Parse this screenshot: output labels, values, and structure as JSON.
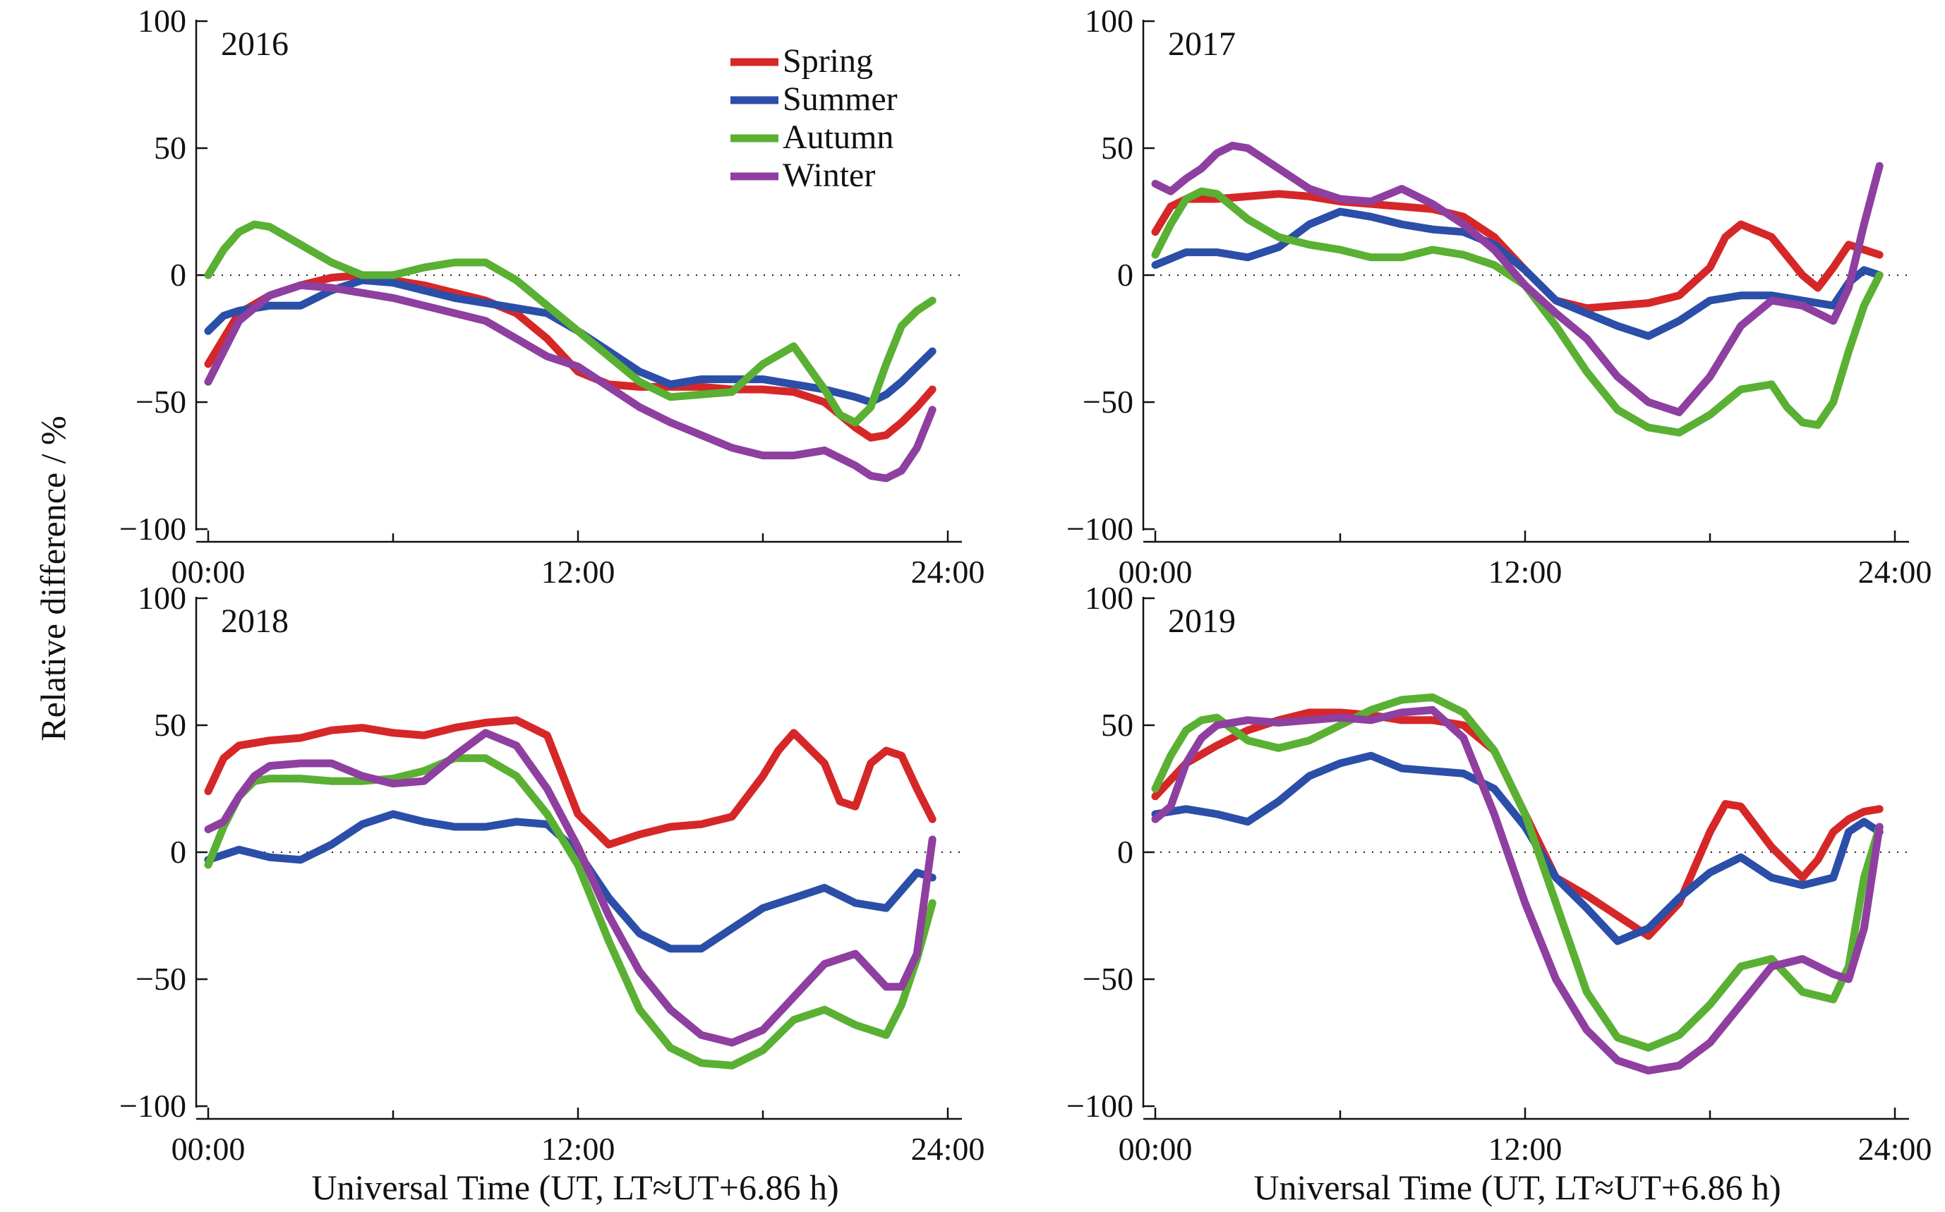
{
  "figure": {
    "ylabel": "Relative difference / %",
    "xlabel": "Universal Time (UT, LT≈UT+6.86 h)"
  },
  "chart_data": [
    {
      "type": "line",
      "title": "2016",
      "xlabel": "Universal Time (UT, LT≈UT+6.86 h)",
      "ylabel": "Relative difference / %",
      "xlim": [
        0,
        24
      ],
      "ylim": [
        -100,
        100
      ],
      "xticks": [
        "00:00",
        "12:00",
        "24:00"
      ],
      "yticks": [
        -100,
        -50,
        0,
        50,
        100
      ],
      "legend": "top-center",
      "series": [
        {
          "name": "Spring",
          "color": "#d62728",
          "x": [
            0,
            0.5,
            1,
            2,
            3,
            4,
            5,
            6,
            7,
            8,
            9,
            10,
            11,
            12,
            13,
            14,
            15,
            16,
            17,
            18,
            19,
            20,
            20.5,
            21,
            21.5,
            22,
            22.5,
            23,
            23.5
          ],
          "y": [
            -35,
            -25,
            -15,
            -8,
            -4,
            -1,
            0,
            -2,
            -4,
            -7,
            -10,
            -15,
            -25,
            -38,
            -43,
            -44,
            -44,
            -44,
            -45,
            -45,
            -46,
            -50,
            -55,
            -60,
            -64,
            -63,
            -58,
            -52,
            -45
          ]
        },
        {
          "name": "Summer",
          "color": "#2b4ea8",
          "x": [
            0,
            0.5,
            1,
            2,
            3,
            4,
            5,
            6,
            7,
            8,
            9,
            10,
            11,
            12,
            13,
            14,
            15,
            16,
            17,
            18,
            19,
            20,
            21,
            21.5,
            22,
            22.5,
            23,
            23.5
          ],
          "y": [
            -22,
            -16,
            -14,
            -12,
            -12,
            -6,
            -2,
            -3,
            -6,
            -9,
            -11,
            -13,
            -15,
            -22,
            -30,
            -38,
            -43,
            -41,
            -41,
            -41,
            -43,
            -45,
            -48,
            -50,
            -47,
            -42,
            -36,
            -30
          ]
        },
        {
          "name": "Autumn",
          "color": "#5ab033",
          "x": [
            0,
            0.5,
            1,
            1.5,
            2,
            3,
            4,
            5,
            6,
            7,
            8,
            9,
            10,
            11,
            12,
            13,
            14,
            15,
            16,
            17,
            18,
            19,
            20,
            20.5,
            21,
            21.5,
            22,
            22.5,
            23,
            23.5
          ],
          "y": [
            0,
            10,
            17,
            20,
            19,
            12,
            5,
            0,
            0,
            3,
            5,
            5,
            -2,
            -12,
            -22,
            -32,
            -42,
            -48,
            -47,
            -46,
            -35,
            -28,
            -45,
            -55,
            -58,
            -52,
            -35,
            -20,
            -14,
            -10
          ]
        },
        {
          "name": "Winter",
          "color": "#8e3fa0",
          "x": [
            0,
            0.5,
            1,
            2,
            3,
            4,
            5,
            6,
            7,
            8,
            9,
            10,
            11,
            12,
            13,
            14,
            15,
            16,
            17,
            18,
            19,
            20,
            20.5,
            21,
            21.5,
            22,
            22.5,
            23,
            23.5
          ],
          "y": [
            -42,
            -30,
            -18,
            -8,
            -4,
            -5,
            -7,
            -9,
            -12,
            -15,
            -18,
            -25,
            -32,
            -36,
            -44,
            -52,
            -58,
            -63,
            -68,
            -71,
            -71,
            -69,
            -72,
            -75,
            -79,
            -80,
            -77,
            -68,
            -53
          ]
        }
      ]
    },
    {
      "type": "line",
      "title": "2017",
      "xlabel": "Universal Time (UT, LT≈UT+6.86 h)",
      "ylabel": "",
      "xlim": [
        0,
        24
      ],
      "ylim": [
        -100,
        100
      ],
      "xticks": [
        "00:00",
        "12:00",
        "24:00"
      ],
      "yticks": [
        -100,
        -50,
        0,
        50,
        100
      ],
      "series": [
        {
          "name": "Spring",
          "color": "#d62728",
          "x": [
            0,
            0.5,
            1,
            2,
            3,
            4,
            5,
            6,
            7,
            8,
            9,
            10,
            11,
            12,
            13,
            14,
            15,
            16,
            17,
            18,
            18.5,
            19,
            20,
            21,
            21.5,
            22,
            22.5,
            23,
            23.5
          ],
          "y": [
            17,
            27,
            30,
            30,
            31,
            32,
            31,
            29,
            28,
            27,
            26,
            23,
            15,
            2,
            -10,
            -13,
            -12,
            -11,
            -8,
            3,
            15,
            20,
            15,
            0,
            -5,
            3,
            12,
            10,
            8
          ]
        },
        {
          "name": "Summer",
          "color": "#2b4ea8",
          "x": [
            0,
            1,
            2,
            3,
            4,
            5,
            6,
            7,
            8,
            9,
            10,
            11,
            12,
            13,
            14,
            15,
            16,
            17,
            18,
            19,
            20,
            21,
            22,
            22.5,
            23,
            23.5
          ],
          "y": [
            4,
            9,
            9,
            7,
            11,
            20,
            25,
            23,
            20,
            18,
            17,
            12,
            2,
            -10,
            -15,
            -20,
            -24,
            -18,
            -10,
            -8,
            -8,
            -10,
            -12,
            -3,
            2,
            0
          ]
        },
        {
          "name": "Autumn",
          "color": "#5ab033",
          "x": [
            0,
            0.5,
            1,
            1.5,
            2,
            3,
            4,
            5,
            6,
            7,
            8,
            9,
            10,
            11,
            12,
            13,
            14,
            15,
            16,
            17,
            18,
            19,
            20,
            20.5,
            21,
            21.5,
            22,
            22.5,
            23,
            23.5
          ],
          "y": [
            8,
            20,
            30,
            33,
            32,
            22,
            15,
            12,
            10,
            7,
            7,
            10,
            8,
            4,
            -4,
            -20,
            -38,
            -53,
            -60,
            -62,
            -55,
            -45,
            -43,
            -52,
            -58,
            -59,
            -50,
            -30,
            -12,
            0
          ]
        },
        {
          "name": "Winter",
          "color": "#8e3fa0",
          "x": [
            0,
            0.5,
            1,
            1.5,
            2,
            2.5,
            3,
            4,
            5,
            6,
            7,
            8,
            9,
            10,
            11,
            12,
            13,
            14,
            15,
            16,
            17,
            18,
            19,
            20,
            21,
            21.5,
            22,
            22.5,
            23,
            23.5
          ],
          "y": [
            36,
            33,
            38,
            42,
            48,
            51,
            50,
            42,
            34,
            30,
            29,
            34,
            28,
            20,
            10,
            -4,
            -15,
            -25,
            -40,
            -50,
            -54,
            -40,
            -20,
            -10,
            -12,
            -15,
            -18,
            -5,
            20,
            43
          ]
        }
      ]
    },
    {
      "type": "line",
      "title": "2018",
      "xlabel": "Universal Time (UT, LT≈UT+6.86 h)",
      "ylabel": "Relative difference / %",
      "xlim": [
        0,
        24
      ],
      "ylim": [
        -100,
        100
      ],
      "xticks": [
        "00:00",
        "12:00",
        "24:00"
      ],
      "yticks": [
        -100,
        -50,
        0,
        50,
        100
      ],
      "series": [
        {
          "name": "Spring",
          "color": "#d62728",
          "x": [
            0,
            0.5,
            1,
            2,
            3,
            4,
            5,
            6,
            7,
            8,
            9,
            10,
            11,
            12,
            13,
            14,
            15,
            16,
            17,
            18,
            18.5,
            19,
            20,
            20.5,
            21,
            21.5,
            22,
            22.5,
            23,
            23.5
          ],
          "y": [
            24,
            37,
            42,
            44,
            45,
            48,
            49,
            47,
            46,
            49,
            51,
            52,
            46,
            15,
            3,
            7,
            10,
            11,
            14,
            30,
            40,
            47,
            35,
            20,
            18,
            35,
            40,
            38,
            25,
            13
          ]
        },
        {
          "name": "Summer",
          "color": "#2b4ea8",
          "x": [
            0,
            1,
            2,
            3,
            4,
            5,
            6,
            7,
            8,
            9,
            10,
            11,
            12,
            13,
            14,
            15,
            16,
            17,
            18,
            19,
            20,
            21,
            22,
            22.5,
            23,
            23.5
          ],
          "y": [
            -3,
            1,
            -2,
            -3,
            3,
            11,
            15,
            12,
            10,
            10,
            12,
            11,
            0,
            -18,
            -32,
            -38,
            -38,
            -30,
            -22,
            -18,
            -14,
            -20,
            -22,
            -15,
            -8,
            -10
          ]
        },
        {
          "name": "Autumn",
          "color": "#5ab033",
          "x": [
            0,
            0.5,
            1,
            1.5,
            2,
            3,
            4,
            5,
            6,
            7,
            8,
            9,
            10,
            11,
            12,
            13,
            14,
            15,
            16,
            17,
            18,
            19,
            20,
            21,
            22,
            22.5,
            23,
            23.5
          ],
          "y": [
            -5,
            10,
            22,
            28,
            29,
            29,
            28,
            28,
            29,
            32,
            37,
            37,
            30,
            15,
            -5,
            -35,
            -62,
            -77,
            -83,
            -84,
            -78,
            -66,
            -62,
            -68,
            -72,
            -60,
            -42,
            -20
          ]
        },
        {
          "name": "Winter",
          "color": "#8e3fa0",
          "x": [
            0,
            0.5,
            1,
            1.5,
            2,
            3,
            4,
            5,
            6,
            7,
            8,
            9,
            10,
            11,
            12,
            13,
            14,
            15,
            16,
            17,
            18,
            19,
            20,
            21,
            22,
            22.5,
            23,
            23.5
          ],
          "y": [
            9,
            12,
            22,
            30,
            34,
            35,
            35,
            30,
            27,
            28,
            38,
            47,
            42,
            25,
            2,
            -25,
            -47,
            -62,
            -72,
            -75,
            -70,
            -57,
            -44,
            -40,
            -53,
            -53,
            -40,
            5
          ]
        }
      ]
    },
    {
      "type": "line",
      "title": "2019",
      "xlabel": "Universal Time (UT, LT≈UT+6.86 h)",
      "ylabel": "",
      "xlim": [
        0,
        24
      ],
      "ylim": [
        -100,
        100
      ],
      "xticks": [
        "00:00",
        "12:00",
        "24:00"
      ],
      "yticks": [
        -100,
        -50,
        0,
        50,
        100
      ],
      "series": [
        {
          "name": "Spring",
          "color": "#d62728",
          "x": [
            0,
            1,
            2,
            3,
            4,
            5,
            6,
            7,
            8,
            9,
            10,
            11,
            12,
            13,
            14,
            15,
            16,
            17,
            18,
            18.5,
            19,
            20,
            21,
            21.5,
            22,
            22.5,
            23,
            23.5
          ],
          "y": [
            22,
            35,
            42,
            48,
            52,
            55,
            55,
            54,
            52,
            52,
            50,
            40,
            15,
            -10,
            -17,
            -25,
            -33,
            -20,
            8,
            19,
            18,
            2,
            -10,
            -3,
            8,
            13,
            16,
            17
          ]
        },
        {
          "name": "Summer",
          "color": "#2b4ea8",
          "x": [
            0,
            1,
            2,
            3,
            4,
            5,
            6,
            7,
            8,
            9,
            10,
            11,
            12,
            13,
            14,
            15,
            16,
            17,
            18,
            19,
            20,
            21,
            22,
            22.5,
            23,
            23.5
          ],
          "y": [
            15,
            17,
            15,
            12,
            20,
            30,
            35,
            38,
            33,
            32,
            31,
            25,
            10,
            -10,
            -22,
            -35,
            -30,
            -18,
            -8,
            -2,
            -10,
            -13,
            -10,
            8,
            12,
            8
          ]
        },
        {
          "name": "Autumn",
          "color": "#5ab033",
          "x": [
            0,
            0.5,
            1,
            1.5,
            2,
            3,
            4,
            5,
            6,
            7,
            8,
            9,
            10,
            11,
            12,
            13,
            14,
            15,
            16,
            17,
            18,
            19,
            20,
            21,
            22,
            22.5,
            23,
            23.5
          ],
          "y": [
            25,
            38,
            48,
            52,
            53,
            44,
            41,
            44,
            50,
            56,
            60,
            61,
            55,
            40,
            15,
            -20,
            -55,
            -73,
            -77,
            -72,
            -60,
            -45,
            -42,
            -55,
            -58,
            -45,
            -10,
            10
          ]
        },
        {
          "name": "Winter",
          "color": "#8e3fa0",
          "x": [
            0,
            0.5,
            1,
            1.5,
            2,
            3,
            4,
            5,
            6,
            7,
            8,
            9,
            10,
            11,
            12,
            13,
            14,
            15,
            16,
            17,
            18,
            19,
            20,
            21,
            22,
            22.5,
            23,
            23.5
          ],
          "y": [
            13,
            18,
            35,
            45,
            50,
            52,
            51,
            52,
            53,
            52,
            55,
            56,
            45,
            15,
            -20,
            -50,
            -70,
            -82,
            -86,
            -84,
            -75,
            -60,
            -45,
            -42,
            -48,
            -50,
            -30,
            10
          ]
        }
      ]
    }
  ]
}
